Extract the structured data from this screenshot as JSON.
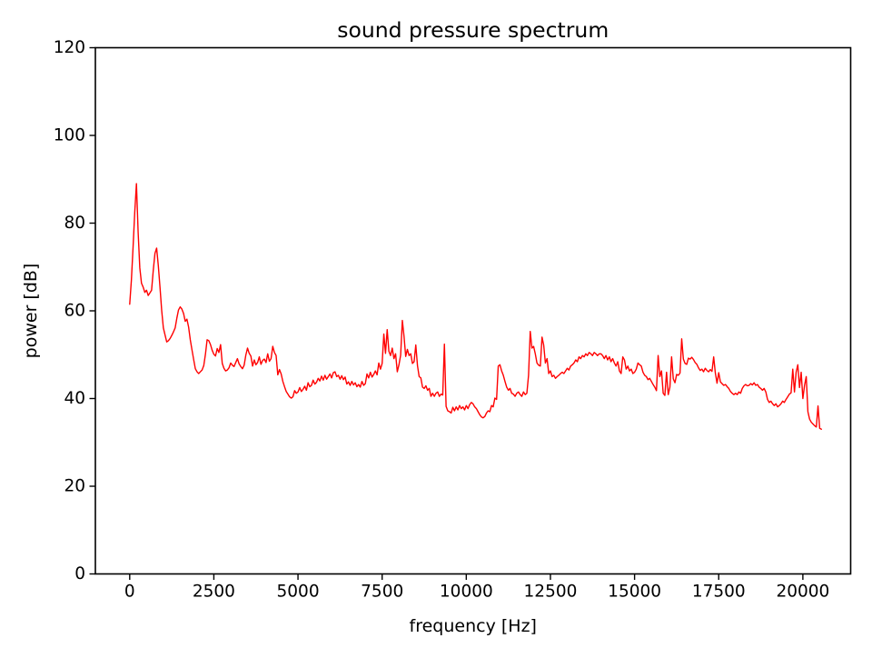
{
  "chart_data": {
    "type": "line",
    "title": "sound pressure spectrum",
    "xlabel": "frequency [Hz]",
    "ylabel": "power [dB]",
    "grid": false,
    "legend": "none",
    "line_color": "#ff0000",
    "background_color": "#ffffff",
    "spine_color": "#000000",
    "xlim": [
      -1020,
      21420
    ],
    "ylim": [
      0,
      120
    ],
    "xticks": [
      0,
      2500,
      5000,
      7500,
      10000,
      12500,
      15000,
      17500,
      20000
    ],
    "xtick_labels": [
      "0",
      "2500",
      "5000",
      "7500",
      "10000",
      "12500",
      "15000",
      "17500",
      "20000"
    ],
    "yticks": [
      0,
      20,
      40,
      60,
      80,
      100,
      120
    ],
    "ytick_labels": [
      "0",
      "20",
      "40",
      "60",
      "80",
      "100",
      "120"
    ],
    "series": [
      {
        "name": "sound pressure spectrum",
        "freq_start_hz": 0,
        "freq_step_hz": 50,
        "power_db": [
          61.5,
          67.0,
          74.5,
          82.5,
          89.0,
          78.0,
          69.8,
          66.3,
          65.4,
          64.2,
          64.7,
          63.5,
          64.1,
          64.7,
          69.2,
          73.1,
          74.3,
          70.3,
          65.4,
          60.1,
          56.1,
          54.5,
          52.9,
          53.2,
          53.7,
          54.4,
          55.2,
          56.1,
          58.3,
          60.2,
          60.9,
          60.4,
          59.4,
          57.6,
          58.1,
          56.3,
          53.4,
          51.1,
          48.9,
          46.8,
          46.1,
          45.7,
          46.1,
          46.5,
          47.5,
          50.1,
          53.4,
          53.2,
          52.3,
          51.0,
          50.1,
          49.7,
          51.4,
          50.5,
          52.3,
          48.0,
          46.9,
          46.3,
          46.5,
          47.0,
          48.1,
          47.6,
          47.3,
          48.2,
          49.1,
          47.9,
          47.3,
          46.8,
          47.6,
          49.9,
          51.5,
          50.3,
          49.7,
          47.4,
          48.8,
          47.7,
          48.2,
          49.5,
          47.8,
          48.7,
          49.0,
          48.2,
          50.2,
          48.5,
          49.1,
          51.9,
          50.5,
          49.8,
          45.4,
          46.6,
          45.6,
          43.9,
          42.7,
          41.6,
          41.0,
          40.4,
          40.1,
          40.4,
          41.8,
          41.2,
          41.5,
          42.5,
          41.6,
          42.1,
          42.8,
          41.9,
          43.6,
          42.7,
          43.0,
          44.2,
          43.3,
          43.7,
          44.6,
          44.0,
          45.1,
          44.2,
          45.3,
          44.4,
          45.0,
          45.6,
          44.7,
          45.9,
          46.1,
          45.0,
          45.3,
          44.4,
          45.2,
          44.3,
          44.9,
          43.3,
          43.8,
          43.0,
          43.9,
          43.1,
          43.6,
          42.7,
          43.2,
          42.6,
          43.9,
          43.0,
          43.4,
          45.6,
          44.7,
          46.0,
          44.9,
          45.5,
          46.3,
          45.4,
          48.1,
          46.7,
          48.0,
          54.7,
          50.3,
          55.7,
          50.8,
          49.8,
          51.5,
          49.1,
          50.2,
          46.1,
          47.7,
          49.9,
          57.8,
          54.2,
          49.6,
          51.2,
          49.8,
          50.2,
          48.0,
          48.4,
          52.2,
          47.5,
          45.0,
          44.7,
          42.6,
          42.3,
          42.9,
          41.9,
          42.3,
          40.5,
          41.2,
          40.5,
          41.2,
          41.5,
          40.5,
          41.0,
          40.8,
          52.4,
          38.2,
          37.2,
          37.0,
          36.7,
          38.0,
          37.2,
          38.1,
          37.4,
          38.4,
          37.7,
          38.1,
          37.4,
          38.4,
          37.7,
          38.6,
          39.1,
          38.8,
          38.1,
          37.7,
          37.0,
          36.3,
          35.8,
          35.6,
          35.9,
          36.7,
          37.2,
          37.0,
          38.4,
          38.1,
          40.1,
          39.8,
          47.4,
          47.7,
          46.3,
          45.3,
          43.9,
          42.6,
          41.9,
          42.3,
          41.2,
          41.0,
          40.5,
          41.2,
          41.5,
          40.9,
          40.5,
          41.5,
          40.9,
          41.2,
          45.3,
          55.3,
          51.5,
          51.9,
          50.2,
          48.1,
          47.6,
          47.4,
          54.0,
          52.2,
          48.1,
          49.1,
          45.7,
          46.3,
          45.0,
          45.3,
          44.6,
          45.0,
          45.3,
          45.7,
          46.0,
          45.7,
          46.3,
          46.9,
          46.5,
          47.4,
          47.7,
          48.1,
          48.8,
          48.4,
          49.5,
          49.1,
          49.8,
          49.5,
          50.2,
          49.8,
          50.5,
          50.2,
          49.8,
          50.5,
          50.2,
          49.8,
          50.2,
          50.2,
          49.8,
          49.1,
          49.8,
          48.8,
          49.5,
          48.4,
          49.1,
          48.1,
          47.4,
          48.4,
          46.3,
          45.7,
          49.5,
          48.8,
          46.7,
          47.4,
          46.3,
          46.7,
          45.7,
          46.0,
          46.7,
          48.1,
          47.7,
          47.4,
          46.0,
          45.3,
          45.0,
          44.3,
          44.6,
          43.9,
          43.2,
          42.6,
          41.8,
          49.8,
          45.0,
          46.3,
          41.2,
          40.7,
          46.0,
          40.9,
          42.6,
          49.5,
          44.5,
          43.6,
          45.5,
          45.3,
          45.8,
          53.6,
          49.0,
          48.0,
          47.8,
          49.2,
          49.0,
          49.4,
          48.9,
          48.2,
          47.8,
          47.0,
          46.4,
          46.7,
          46.1,
          46.9,
          46.4,
          46.1,
          46.6,
          46.2,
          49.5,
          45.8,
          43.5,
          45.9,
          43.8,
          43.4,
          43.0,
          43.2,
          42.7,
          42.3,
          41.6,
          41.2,
          40.9,
          41.2,
          40.9,
          41.5,
          41.2,
          42.3,
          42.9,
          43.2,
          42.9,
          43.0,
          43.4,
          43.1,
          43.6,
          43.0,
          43.2,
          42.6,
          42.3,
          41.9,
          42.3,
          41.5,
          39.8,
          39.1,
          39.4,
          38.8,
          38.4,
          38.8,
          38.1,
          38.4,
          38.8,
          39.4,
          39.1,
          39.8,
          40.4,
          41.0,
          41.3,
          46.7,
          41.5,
          46.0,
          47.7,
          42.5,
          46.0,
          40.0,
          43.0,
          45.0,
          37.0,
          35.3,
          34.6,
          34.2,
          33.8,
          33.5,
          38.3,
          33.2,
          33.0
        ]
      }
    ]
  }
}
